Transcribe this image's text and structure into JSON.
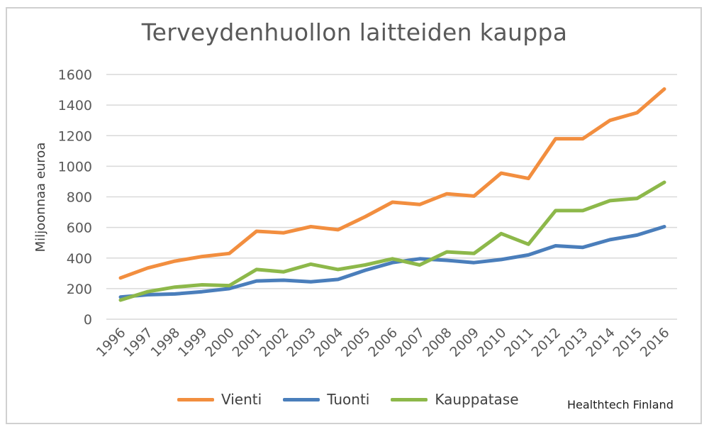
{
  "chart_data": {
    "type": "line",
    "title": "Terveydenhuollon laitteiden kauppa",
    "ylabel": "Miljoonnaa euroa",
    "xlabel": "",
    "ylim": [
      0,
      1600
    ],
    "yticks": [
      "0",
      "200",
      "400",
      "600",
      "800",
      "1000",
      "1200",
      "1400",
      "1600"
    ],
    "categories": [
      "1996",
      "1997",
      "1998",
      "1999",
      "2000",
      "2001",
      "2002",
      "2003",
      "2004",
      "2005",
      "2006",
      "2007",
      "2008",
      "2009",
      "2010",
      "2011",
      "2012",
      "2013",
      "2014",
      "2015",
      "2016"
    ],
    "grid": true,
    "legend_position": "bottom",
    "series": [
      {
        "name": "Vienti",
        "color": "#F28E3F",
        "values": [
          270,
          335,
          380,
          410,
          430,
          575,
          565,
          605,
          585,
          670,
          765,
          750,
          820,
          805,
          955,
          920,
          1180,
          1180,
          1300,
          1350,
          1505
        ]
      },
      {
        "name": "Tuonti",
        "color": "#4A7EBB",
        "values": [
          145,
          160,
          165,
          180,
          200,
          250,
          255,
          245,
          260,
          320,
          370,
          395,
          385,
          370,
          390,
          420,
          480,
          470,
          520,
          550,
          605
        ]
      },
      {
        "name": "Kauppatase",
        "color": "#8DB84A",
        "values": [
          125,
          180,
          210,
          225,
          220,
          325,
          310,
          360,
          325,
          355,
          395,
          355,
          440,
          430,
          560,
          490,
          710,
          710,
          775,
          790,
          895
        ]
      }
    ]
  },
  "source": "Healthtech Finland"
}
